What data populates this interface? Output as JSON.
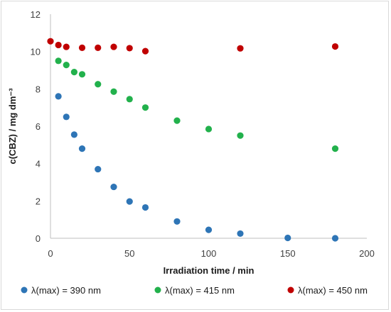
{
  "chart_data": {
    "type": "scatter",
    "xlabel": "Irradiation time / min",
    "ylabel": "c(CBZ) / mg dm⁻³",
    "xlim": [
      0,
      200
    ],
    "ylim": [
      0,
      12
    ],
    "xticks": [
      0,
      50,
      100,
      150,
      200
    ],
    "yticks": [
      0,
      2,
      4,
      6,
      8,
      10,
      12
    ],
    "grid": false,
    "legend_position": "bottom",
    "series": [
      {
        "name": "λ(max) = 390 nm",
        "color": "#2e75b6",
        "points": [
          [
            5,
            7.6
          ],
          [
            10,
            6.5
          ],
          [
            15,
            5.55
          ],
          [
            20,
            4.8
          ],
          [
            30,
            3.7
          ],
          [
            40,
            2.75
          ],
          [
            50,
            1.97
          ],
          [
            60,
            1.65
          ],
          [
            80,
            0.9
          ],
          [
            100,
            0.45
          ],
          [
            120,
            0.25
          ],
          [
            150,
            0.02
          ],
          [
            180,
            0.0
          ]
        ]
      },
      {
        "name": "λ(max) = 415 nm",
        "color": "#22b14c",
        "points": [
          [
            5,
            9.5
          ],
          [
            10,
            9.28
          ],
          [
            15,
            8.9
          ],
          [
            20,
            8.78
          ],
          [
            30,
            8.25
          ],
          [
            40,
            7.85
          ],
          [
            50,
            7.45
          ],
          [
            60,
            7.0
          ],
          [
            80,
            6.3
          ],
          [
            100,
            5.85
          ],
          [
            120,
            5.5
          ],
          [
            180,
            4.8
          ]
        ]
      },
      {
        "name": "λ(max) = 450 nm",
        "color": "#c00000",
        "points": [
          [
            0,
            10.55
          ],
          [
            5,
            10.35
          ],
          [
            10,
            10.25
          ],
          [
            20,
            10.2
          ],
          [
            30,
            10.2
          ],
          [
            40,
            10.25
          ],
          [
            50,
            10.18
          ],
          [
            60,
            10.02
          ],
          [
            120,
            10.17
          ],
          [
            180,
            10.27
          ]
        ]
      }
    ]
  }
}
